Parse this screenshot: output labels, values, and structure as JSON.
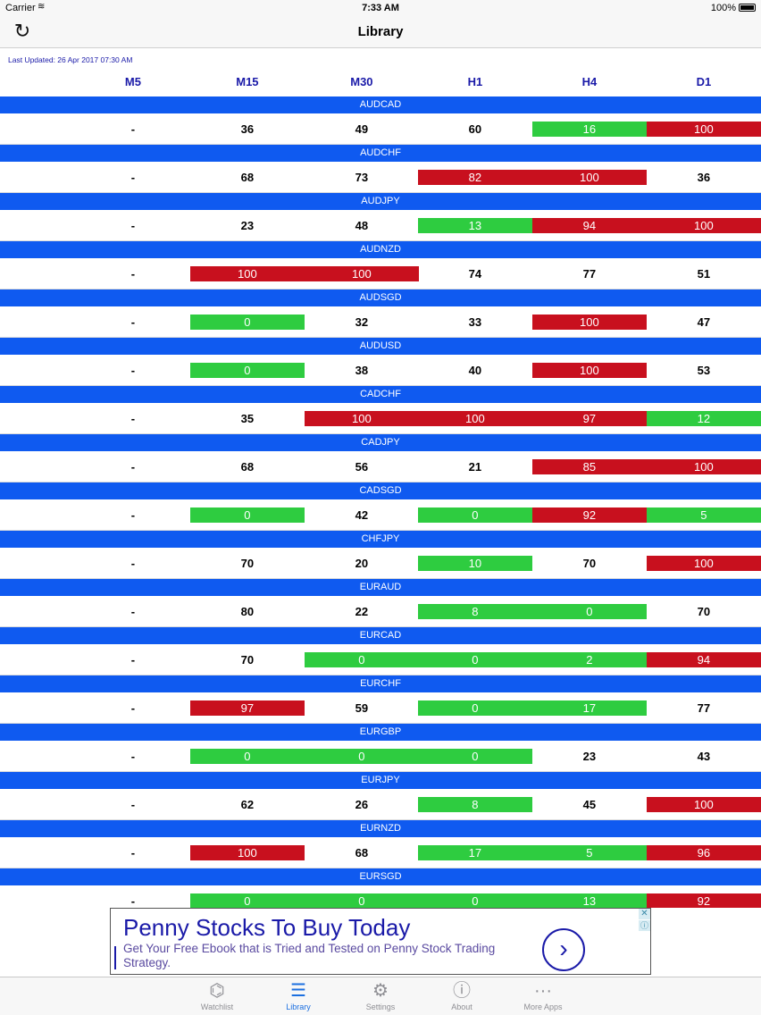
{
  "status_bar": {
    "carrier": "Carrier",
    "time": "7:33 AM",
    "battery": "100%"
  },
  "nav": {
    "title": "Library",
    "refresh_icon": "refresh-icon"
  },
  "last_updated": "Last Updated: 26 Apr 2017 07:30 AM",
  "columns": [
    "M5",
    "M15",
    "M30",
    "H1",
    "H4",
    "D1"
  ],
  "colors": {
    "pair_bar": "#0f5af0",
    "high": "#c8101e",
    "low": "#2ecc40",
    "header_text": "#1a1aa8"
  },
  "rows": [
    {
      "pair": "AUDCAD",
      "values": [
        "-",
        "36",
        "49",
        "60",
        "16",
        "100"
      ],
      "status": [
        "",
        "",
        "",
        "",
        "low",
        "high"
      ]
    },
    {
      "pair": "AUDCHF",
      "values": [
        "-",
        "68",
        "73",
        "82",
        "100",
        "36"
      ],
      "status": [
        "",
        "",
        "",
        "high",
        "high",
        ""
      ]
    },
    {
      "pair": "AUDJPY",
      "values": [
        "-",
        "23",
        "48",
        "13",
        "94",
        "100"
      ],
      "status": [
        "",
        "",
        "",
        "low",
        "high",
        "high"
      ]
    },
    {
      "pair": "AUDNZD",
      "values": [
        "-",
        "100",
        "100",
        "74",
        "77",
        "51"
      ],
      "status": [
        "",
        "high",
        "high",
        "",
        "",
        ""
      ]
    },
    {
      "pair": "AUDSGD",
      "values": [
        "-",
        "0",
        "32",
        "33",
        "100",
        "47"
      ],
      "status": [
        "",
        "low",
        "",
        "",
        "high",
        ""
      ]
    },
    {
      "pair": "AUDUSD",
      "values": [
        "-",
        "0",
        "38",
        "40",
        "100",
        "53"
      ],
      "status": [
        "",
        "low",
        "",
        "",
        "high",
        ""
      ]
    },
    {
      "pair": "CADCHF",
      "values": [
        "-",
        "35",
        "100",
        "100",
        "97",
        "12"
      ],
      "status": [
        "",
        "",
        "high",
        "high",
        "high",
        "low"
      ]
    },
    {
      "pair": "CADJPY",
      "values": [
        "-",
        "68",
        "56",
        "21",
        "85",
        "100"
      ],
      "status": [
        "",
        "",
        "",
        "",
        "high",
        "high"
      ]
    },
    {
      "pair": "CADSGD",
      "values": [
        "-",
        "0",
        "42",
        "0",
        "92",
        "5"
      ],
      "status": [
        "",
        "low",
        "",
        "low",
        "high",
        "low"
      ]
    },
    {
      "pair": "CHFJPY",
      "values": [
        "-",
        "70",
        "20",
        "10",
        "70",
        "100"
      ],
      "status": [
        "",
        "",
        "",
        "low",
        "",
        "high"
      ]
    },
    {
      "pair": "EURAUD",
      "values": [
        "-",
        "80",
        "22",
        "8",
        "0",
        "70"
      ],
      "status": [
        "",
        "",
        "",
        "low",
        "low",
        ""
      ]
    },
    {
      "pair": "EURCAD",
      "values": [
        "-",
        "70",
        "0",
        "0",
        "2",
        "94"
      ],
      "status": [
        "",
        "",
        "low",
        "low",
        "low",
        "high"
      ]
    },
    {
      "pair": "EURCHF",
      "values": [
        "-",
        "97",
        "59",
        "0",
        "17",
        "77"
      ],
      "status": [
        "",
        "high",
        "",
        "low",
        "low",
        ""
      ]
    },
    {
      "pair": "EURGBP",
      "values": [
        "-",
        "0",
        "0",
        "0",
        "23",
        "43"
      ],
      "status": [
        "",
        "low",
        "low",
        "low",
        "",
        ""
      ]
    },
    {
      "pair": "EURJPY",
      "values": [
        "-",
        "62",
        "26",
        "8",
        "45",
        "100"
      ],
      "status": [
        "",
        "",
        "",
        "low",
        "",
        "high"
      ]
    },
    {
      "pair": "EURNZD",
      "values": [
        "-",
        "100",
        "68",
        "17",
        "5",
        "96"
      ],
      "status": [
        "",
        "high",
        "",
        "low",
        "low",
        "high"
      ]
    },
    {
      "pair": "EURSGD",
      "values": [
        "-",
        "0",
        "0",
        "0",
        "13",
        "92"
      ],
      "status": [
        "",
        "low",
        "low",
        "low",
        "low",
        "high"
      ]
    }
  ],
  "ad": {
    "title": "Penny Stocks To Buy Today",
    "body": "Get Your Free Ebook that is Tried and Tested on Penny Stock Trading Strategy.",
    "arrow": "›",
    "close": "✕",
    "info": "ⓘ"
  },
  "tabs": [
    {
      "label": "Watchlist",
      "icon": "binoculars-icon",
      "glyph": "⌬",
      "active": false
    },
    {
      "label": "Library",
      "icon": "list-icon",
      "glyph": "☰",
      "active": true
    },
    {
      "label": "Settings",
      "icon": "gear-icon",
      "glyph": "⚙",
      "active": false
    },
    {
      "label": "About",
      "icon": "info-icon",
      "glyph": "ⓘ",
      "active": false
    },
    {
      "label": "More Apps",
      "icon": "more-icon",
      "glyph": "···",
      "active": false
    }
  ]
}
